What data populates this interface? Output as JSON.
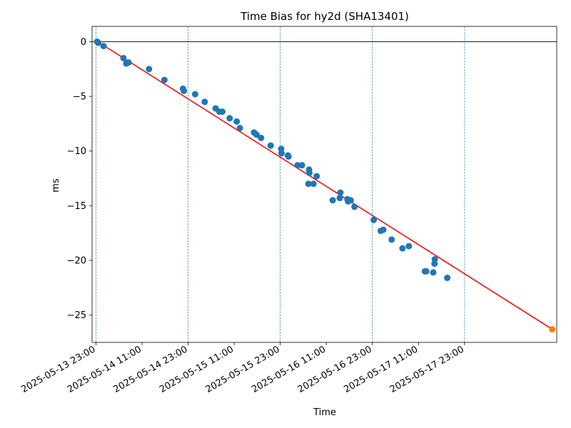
{
  "chart_data": {
    "type": "scatter",
    "title": "Time Bias for hy2d (SHA13401)",
    "xlabel": "Time",
    "ylabel": "ms",
    "x_start": "2025-05-13 22:00",
    "x_end": "2025-05-18 23:00",
    "ylim": [
      -27.5,
      1.4
    ],
    "x_ticks": [
      "2025-05-13 23:00",
      "2025-05-14 11:00",
      "2025-05-14 23:00",
      "2025-05-15 11:00",
      "2025-05-15 23:00",
      "2025-05-16 11:00",
      "2025-05-16 23:00",
      "2025-05-17 11:00",
      "2025-05-17 23:00"
    ],
    "y_ticks": [
      0,
      -5,
      -10,
      -15,
      -20,
      -25
    ],
    "y_tick_labels": [
      "0",
      "−5",
      "−10",
      "−15",
      "−20",
      "−25"
    ],
    "day_lines": [
      "2025-05-13 23:00",
      "2025-05-14 23:00",
      "2025-05-15 23:00",
      "2025-05-16 23:00",
      "2025-05-17 23:00"
    ],
    "zero_line": 0,
    "colors": {
      "points": "#1f77b4",
      "fit": "#ff0000",
      "predicted": "#ff7f0e",
      "day_lines": "#1f77b4"
    },
    "fit_line": {
      "start": {
        "x": "2025-05-13 23:00",
        "y": 0.1
      },
      "end": {
        "x": "2025-05-18 21:50",
        "y": -26.3
      }
    },
    "predicted_point": {
      "x": "2025-05-18 21:50",
      "y": -26.3
    },
    "points": [
      {
        "x": "2025-05-13 23:20",
        "y": 0.0
      },
      {
        "x": "2025-05-13 23:35",
        "y": -0.1
      },
      {
        "x": "2025-05-14 01:00",
        "y": -0.4
      },
      {
        "x": "2025-05-14 06:10",
        "y": -1.5
      },
      {
        "x": "2025-05-14 06:55",
        "y": -2.0
      },
      {
        "x": "2025-05-14 07:30",
        "y": -1.9
      },
      {
        "x": "2025-05-14 12:50",
        "y": -2.5
      },
      {
        "x": "2025-05-14 16:50",
        "y": -3.5
      },
      {
        "x": "2025-05-14 21:40",
        "y": -4.3
      },
      {
        "x": "2025-05-14 21:55",
        "y": -4.5
      },
      {
        "x": "2025-05-15 00:50",
        "y": -4.8
      },
      {
        "x": "2025-05-15 03:20",
        "y": -5.5
      },
      {
        "x": "2025-05-15 06:10",
        "y": -6.1
      },
      {
        "x": "2025-05-15 07:10",
        "y": -6.4
      },
      {
        "x": "2025-05-15 07:55",
        "y": -6.4
      },
      {
        "x": "2025-05-15 09:50",
        "y": -7.0
      },
      {
        "x": "2025-05-15 11:40",
        "y": -7.3
      },
      {
        "x": "2025-05-15 12:30",
        "y": -7.9
      },
      {
        "x": "2025-05-15 16:10",
        "y": -8.3
      },
      {
        "x": "2025-05-15 16:50",
        "y": -8.5
      },
      {
        "x": "2025-05-15 18:00",
        "y": -8.8
      },
      {
        "x": "2025-05-15 20:30",
        "y": -9.5
      },
      {
        "x": "2025-05-15 23:15",
        "y": -9.8
      },
      {
        "x": "2025-05-15 23:20",
        "y": -10.2
      },
      {
        "x": "2025-05-16 01:00",
        "y": -10.4
      },
      {
        "x": "2025-05-16 01:10",
        "y": -10.5
      },
      {
        "x": "2025-05-16 03:30",
        "y": -11.3
      },
      {
        "x": "2025-05-16 04:40",
        "y": -11.3
      },
      {
        "x": "2025-05-16 06:30",
        "y": -11.7
      },
      {
        "x": "2025-05-16 06:35",
        "y": -12.0
      },
      {
        "x": "2025-05-16 06:20",
        "y": -13.0
      },
      {
        "x": "2025-05-16 07:40",
        "y": -13.0
      },
      {
        "x": "2025-05-16 08:30",
        "y": -12.3
      },
      {
        "x": "2025-05-16 12:40",
        "y": -14.5
      },
      {
        "x": "2025-05-16 14:30",
        "y": -14.3
      },
      {
        "x": "2025-05-16 14:40",
        "y": -13.8
      },
      {
        "x": "2025-05-16 16:30",
        "y": -14.4
      },
      {
        "x": "2025-05-16 16:40",
        "y": -14.6
      },
      {
        "x": "2025-05-16 17:20",
        "y": -14.5
      },
      {
        "x": "2025-05-16 18:20",
        "y": -15.1
      },
      {
        "x": "2025-05-16 23:20",
        "y": -16.3
      },
      {
        "x": "2025-05-17 01:10",
        "y": -17.3
      },
      {
        "x": "2025-05-17 01:50",
        "y": -17.2
      },
      {
        "x": "2025-05-17 04:00",
        "y": -18.1
      },
      {
        "x": "2025-05-17 06:50",
        "y": -18.9
      },
      {
        "x": "2025-05-17 08:30",
        "y": -18.7
      },
      {
        "x": "2025-05-17 12:40",
        "y": -21.0
      },
      {
        "x": "2025-05-17 13:00",
        "y": -21.0
      },
      {
        "x": "2025-05-17 14:50",
        "y": -21.1
      },
      {
        "x": "2025-05-17 15:10",
        "y": -20.3
      },
      {
        "x": "2025-05-17 15:15",
        "y": -19.9
      },
      {
        "x": "2025-05-17 18:30",
        "y": -21.6
      }
    ]
  }
}
